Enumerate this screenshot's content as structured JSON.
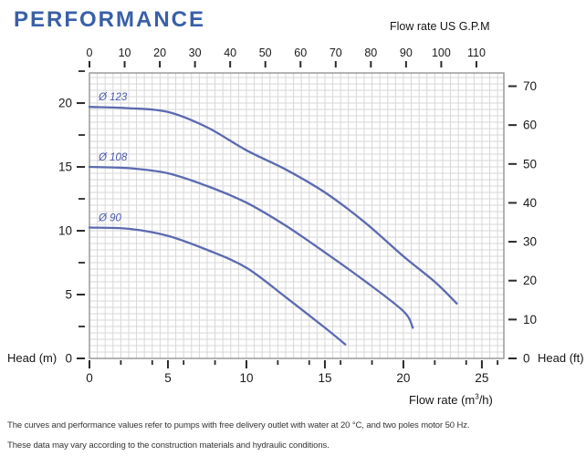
{
  "page": {
    "title": "PERFORMANCE",
    "footnote": {
      "line1": "The curves and performance values refer to pumps with free delivery outlet with water at 20 °C, and two poles motor 50 Hz.",
      "line2": "These data may vary according to the construction materials and hydraulic conditions."
    }
  },
  "chart_data": {
    "type": "line",
    "title": "PERFORMANCE",
    "x_top": {
      "label": "Flow rate US G.P.M",
      "unit": "US G.P.M",
      "ticks": [
        0,
        10,
        20,
        30,
        40,
        50,
        60,
        70,
        80,
        90,
        100,
        110
      ],
      "range": [
        0,
        117.8
      ]
    },
    "x_bottom": {
      "label_prefix": "Flow rate  (m",
      "label_sup": "3",
      "label_suffix": "/h)",
      "unit": "m³/h",
      "major_ticks": [
        0,
        5,
        10,
        15,
        20,
        25
      ],
      "minor_ticks": [
        2,
        4,
        6,
        8,
        12,
        14,
        16,
        18,
        22,
        24,
        26
      ],
      "range": [
        0,
        26.4
      ]
    },
    "y_left": {
      "label": "Head (m)",
      "unit": "m",
      "major_ticks": [
        0,
        5,
        10,
        15,
        20
      ],
      "minor_ticks": [
        2.5,
        7.5,
        12.5,
        17.5,
        22.5
      ],
      "range": [
        0,
        22.36
      ]
    },
    "y_right": {
      "label": "Head (ft)",
      "unit": "ft",
      "ticks": [
        0,
        10,
        20,
        30,
        40,
        50,
        60,
        70
      ],
      "range": [
        0,
        73.4
      ]
    },
    "grid_step": {
      "x": 0.5,
      "y": 0.5
    },
    "grid_on": true,
    "legend_position": "curve-labels-inline",
    "curve_color": "#5c6ab0",
    "label_color": "#4a58ab",
    "accent_color": "#3a5fa8",
    "series": [
      {
        "name": "Ø 123",
        "points": [
          [
            0,
            19.7
          ],
          [
            2.5,
            19.6
          ],
          [
            5,
            19.3
          ],
          [
            7.5,
            18.1
          ],
          [
            10,
            16.3
          ],
          [
            12.5,
            14.8
          ],
          [
            15,
            13.0
          ],
          [
            17.5,
            10.7
          ],
          [
            20,
            8.0
          ],
          [
            22,
            6.0
          ],
          [
            23.4,
            4.3
          ]
        ]
      },
      {
        "name": "Ø 108",
        "points": [
          [
            0,
            15.0
          ],
          [
            2.5,
            14.9
          ],
          [
            5,
            14.5
          ],
          [
            7.5,
            13.5
          ],
          [
            10,
            12.2
          ],
          [
            12.5,
            10.4
          ],
          [
            15,
            8.3
          ],
          [
            17.5,
            6.1
          ],
          [
            20,
            3.7
          ],
          [
            20.6,
            2.4
          ]
        ]
      },
      {
        "name": "Ø 90",
        "points": [
          [
            0,
            10.25
          ],
          [
            2.5,
            10.15
          ],
          [
            5,
            9.6
          ],
          [
            7.5,
            8.5
          ],
          [
            10,
            7.1
          ],
          [
            12.5,
            4.8
          ],
          [
            15,
            2.4
          ],
          [
            16.3,
            1.1
          ]
        ]
      }
    ]
  }
}
